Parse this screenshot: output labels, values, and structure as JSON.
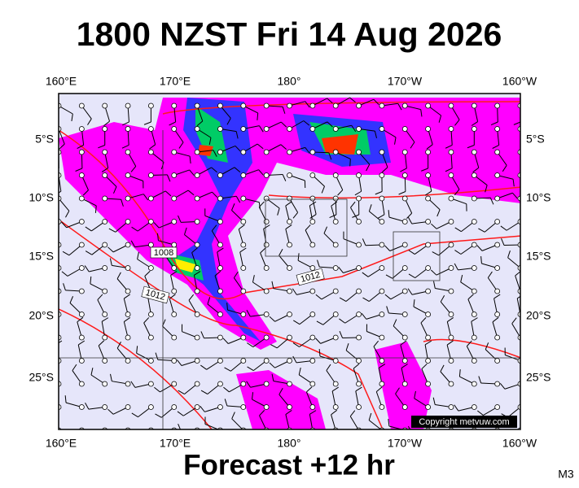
{
  "header": {
    "title": "1800 NZST Fri 14 Aug 2026"
  },
  "map": {
    "top_labels": [
      "160°E",
      "170°E",
      "180°",
      "170°W",
      "160°W"
    ],
    "bottom_labels": [
      "160°E",
      "170°E",
      "180°",
      "170°W",
      "160°W"
    ],
    "left_labels": [
      "5°S",
      "10°S",
      "15°S",
      "20°S",
      "25°S"
    ],
    "right_labels": [
      "5°S",
      "10°S",
      "15°S",
      "20°S",
      "25°S"
    ],
    "isobar_labels": [
      "1008",
      "1012",
      "1012"
    ],
    "copyright": "Copyright metvuw.com"
  },
  "footer": {
    "caption": "Forecast +12 hr",
    "code": "M3"
  }
}
